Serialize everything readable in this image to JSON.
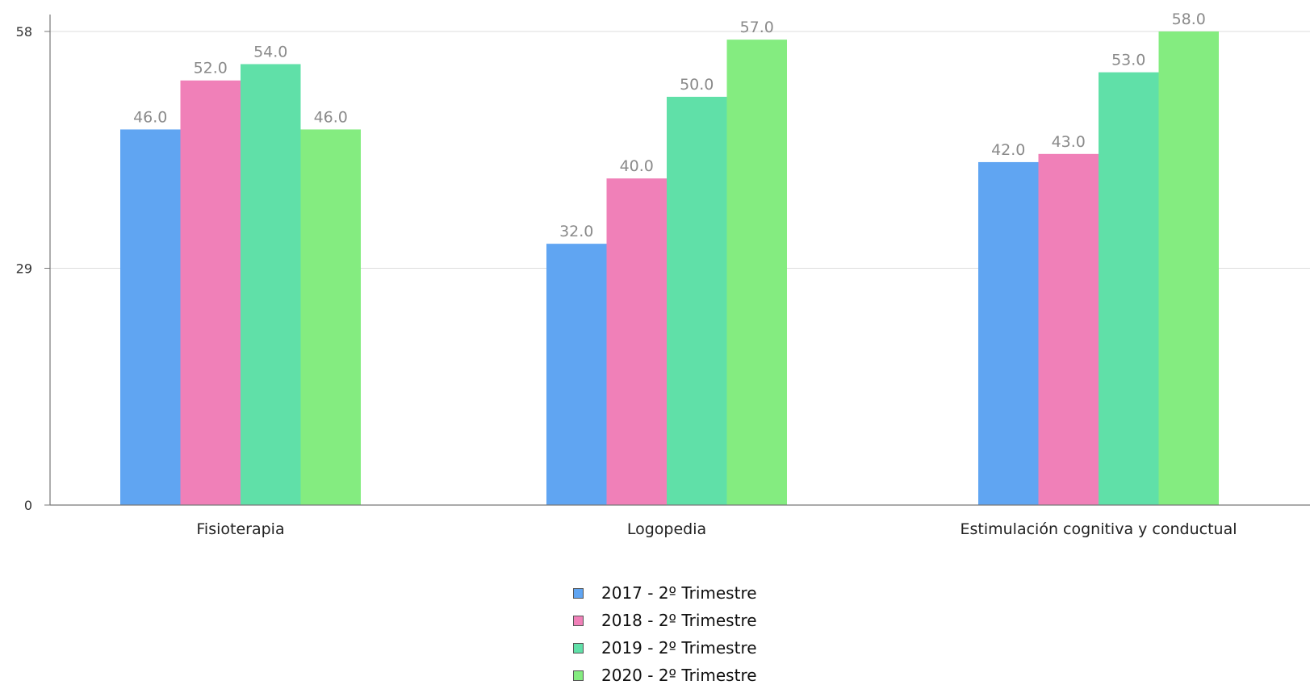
{
  "chart_data": {
    "type": "bar",
    "categories": [
      "Fisioterapia",
      "Logopedia",
      "Estimulación cognitiva y conductual"
    ],
    "series": [
      {
        "name": "2017 - 2º Trimestre",
        "color": "#60a5f2",
        "values": [
          46.0,
          32.0,
          42.0
        ],
        "labels": [
          "46.0",
          "32.0",
          "42.0"
        ]
      },
      {
        "name": "2018 - 2º Trimestre",
        "color": "#f080b8",
        "values": [
          52.0,
          40.0,
          43.0
        ],
        "labels": [
          "52.0",
          "40.0",
          "43.0"
        ]
      },
      {
        "name": "2019 - 2º Trimestre",
        "color": "#60e0a8",
        "values": [
          54.0,
          50.0,
          53.0
        ],
        "labels": [
          "54.0",
          "50.0",
          "53.0"
        ]
      },
      {
        "name": "2020 - 2º Trimestre",
        "color": "#84ec80",
        "values": [
          46.0,
          57.0,
          58.0
        ],
        "labels": [
          "46.0",
          "57.0",
          "58.0"
        ]
      }
    ],
    "y_ticks": [
      "0",
      "29",
      "58"
    ],
    "ylim": [
      0,
      58
    ],
    "grid": true,
    "legend_position": "bottom-center"
  }
}
